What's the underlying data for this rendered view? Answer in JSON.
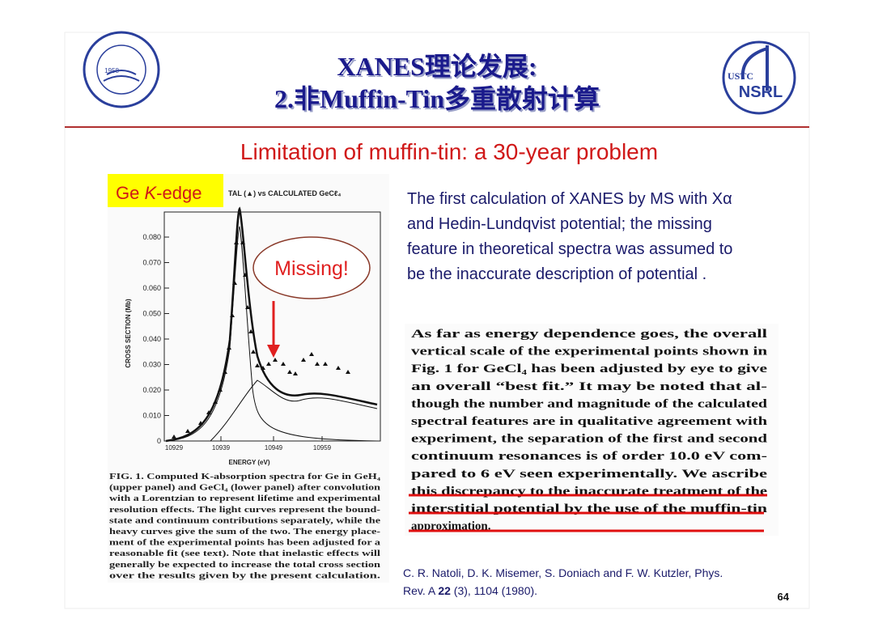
{
  "header": {
    "title_line1": "XANES理论发展:",
    "title_line2": "2.非Muffin-Tin多重散射计算",
    "logo_left_year": "1958",
    "logo_right_top": "USTC",
    "logo_right_bottom": "NSRL"
  },
  "subtitle": "Limitation of muffin-tin: a 30-year problem",
  "figure": {
    "label_prefix": "Ge ",
    "label_italic": "K",
    "label_suffix": "-edge",
    "figure_title": "TAL (▲) vs CALCULATED GeCℓ₄",
    "yticks": [
      "0.080",
      "0.070",
      "0.060",
      "0.050",
      "0.040",
      "0.030",
      "0.020",
      "0.010",
      "0"
    ],
    "xticks": [
      "10929",
      "10939",
      "10949",
      "10959"
    ],
    "y_axis_label": "CROSS SECTION (Mb)",
    "x_axis_label": "ENERGY (eV)",
    "callout": "Missing!",
    "caption_lines": [
      "FIG. 1.  Computed K-absorption spectra for Ge in GeH₄",
      "(upper panel) and GeCl₄ (lower panel) after convolution",
      "with a Lorentzian to represent lifetime and experimental",
      "resolution effects.  The light curves represent the bound-",
      "state and continuum contributions separately, while the",
      "heavy curves give the sum of the two.  The energy place-",
      "ment of the experimental points has been adjusted for a",
      "reasonable fit (see text).  Note that inelastic effects will",
      "generally be expected to increase the total cross section",
      "over the results given by the present calculation."
    ]
  },
  "paragraph_lines": [
    "The first calculation of XANES by MS with Xα",
    "and Hedin-Lundqvist potential; the missing",
    "feature in theoretical spectra was assumed to",
    "be the inaccurate description of potential ."
  ],
  "quote_lines": [
    "As far as energy dependence goes, the overall",
    "vertical scale of the experimental points shown in",
    "Fig. 1 for GeCl₄ has been adjusted by eye to give",
    "an overall “best fit.”  It may be noted that al-",
    "though the number and magnitude of the calculated",
    "spectral features are in qualitative agreement with",
    "experiment, the separation of the first and second",
    "continuum resonances is of order 10.0 eV com-",
    "pared to 6 eV seen experimentally.  We ascribe",
    "this discrepancy to the inaccurate treatment of the",
    "interstitial potential by the use of the muffin-tin",
    "approximation."
  ],
  "citation": {
    "line1": "C. R. Natoli, D. K. Misemer, S. Doniach and F. W. Kutzler, Phys.",
    "line2_start": "Rev. A ",
    "line2_volume": "22",
    "line2_end": " (3), 1104 (1980)."
  },
  "page_number": "64"
}
